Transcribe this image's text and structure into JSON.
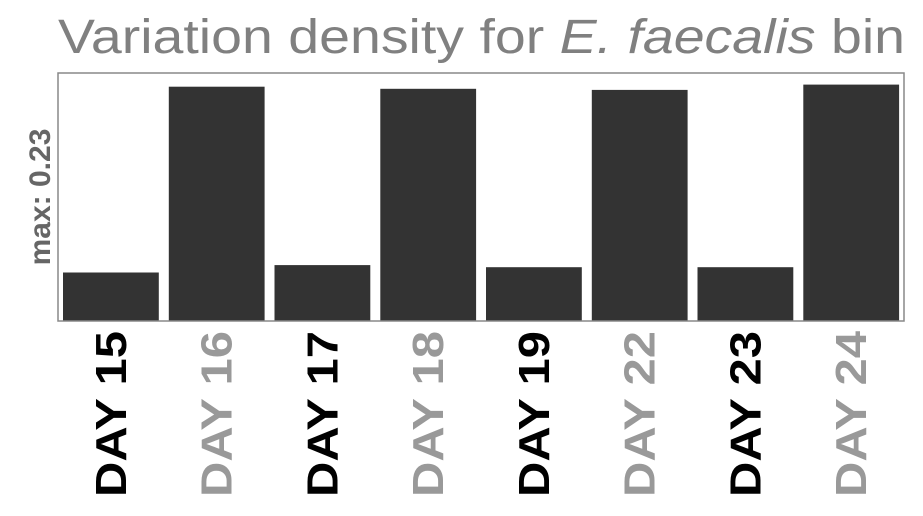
{
  "chart_data": {
    "type": "bar",
    "title_prefix": "Variation density for ",
    "title_italic": "E. faecalis",
    "title_suffix": " bin",
    "ylabel": "max: 0.23",
    "categories": [
      "DAY 15",
      "DAY 16",
      "DAY 17",
      "DAY 18",
      "DAY 19",
      "DAY 22",
      "DAY 23",
      "DAY 24"
    ],
    "values": [
      0.046,
      0.222,
      0.053,
      0.22,
      0.051,
      0.219,
      0.051,
      0.224
    ],
    "ylim": [
      0,
      0.235
    ],
    "grid": false,
    "bar_color": "#333333",
    "label_colors": [
      "#000000",
      "#999999"
    ],
    "title_color": "#808080",
    "ylabel_color": "#666666",
    "frame_color": "#888888"
  }
}
